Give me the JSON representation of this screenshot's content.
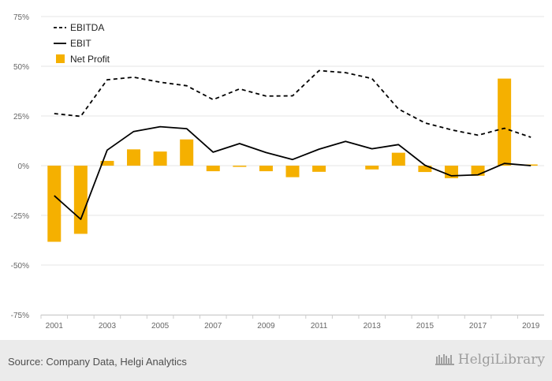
{
  "chart_data": {
    "type": "bar",
    "categories": [
      "2001",
      "2002",
      "2003",
      "2004",
      "2005",
      "2006",
      "2007",
      "2008",
      "2009",
      "2010",
      "2011",
      "2012",
      "2013",
      "2014",
      "2015",
      "2016",
      "2017",
      "2018",
      "2019"
    ],
    "x_tick_labels": [
      "2001",
      "2003",
      "2005",
      "2007",
      "2009",
      "2011",
      "2013",
      "2015",
      "2017",
      "2019"
    ],
    "y_ticks": [
      -75,
      -50,
      -25,
      0,
      25,
      50,
      75
    ],
    "y_tick_labels": [
      "-75%",
      "-50%",
      "-25%",
      "0%",
      "25%",
      "50%",
      "75%"
    ],
    "ylim": [
      -75,
      75
    ],
    "grid": true,
    "legend_position": "top-left",
    "series": [
      {
        "name": "EBITDA",
        "type": "line",
        "style": "dashed",
        "color": "#000000",
        "values": [
          26.2,
          24.8,
          43.2,
          44.5,
          42.0,
          40.2,
          33.2,
          38.6,
          35.0,
          35.1,
          47.8,
          46.8,
          43.8,
          28.5,
          21.5,
          18.0,
          15.3,
          18.8,
          14.3
        ]
      },
      {
        "name": "EBIT",
        "type": "line",
        "style": "solid",
        "color": "#000000",
        "values": [
          -15.1,
          -27.0,
          7.8,
          17.2,
          19.6,
          18.6,
          6.8,
          11.1,
          6.6,
          3.1,
          8.3,
          12.2,
          8.5,
          10.6,
          0.2,
          -5.1,
          -4.6,
          1.1,
          0.0
        ]
      },
      {
        "name": "Net Profit",
        "type": "bar",
        "color": "#f5b000",
        "values": [
          -38.3,
          -34.3,
          2.4,
          8.2,
          7.1,
          13.2,
          -2.8,
          -0.6,
          -2.8,
          -5.8,
          -3.1,
          0.0,
          -1.9,
          6.5,
          -3.2,
          -6.3,
          -5.1,
          43.8,
          0.6
        ]
      }
    ]
  },
  "footer": {
    "source": "Source: Company Data, Helgi Analytics",
    "brand": "HelgiLibrary"
  },
  "colors": {
    "grid": "#e6e6e6",
    "axis": "#cccccc",
    "bar": "#f5b000",
    "line": "#000000",
    "footer_bg": "#ebebeb"
  }
}
